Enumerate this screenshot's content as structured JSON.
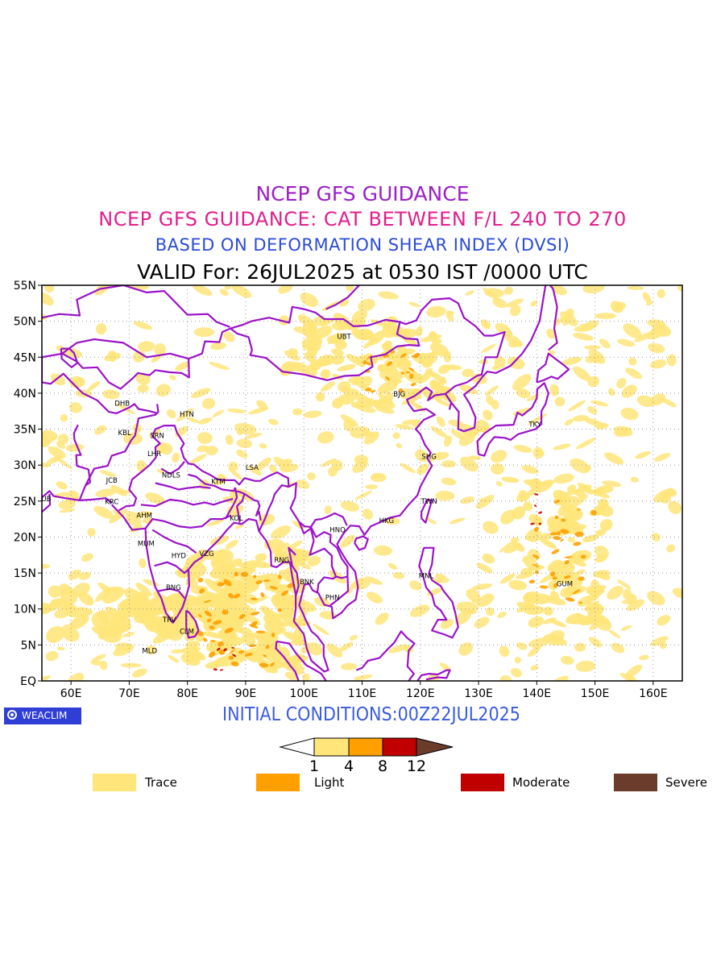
{
  "titles": {
    "line1": "NCEP GFS GUIDANCE",
    "line2": "NCEP GFS GUIDANCE: CAT BETWEEN F/L 240 TO 270",
    "line3": "BASED ON DEFORMATION SHEAR INDEX (DVSI)",
    "line4": "VALID For: 26JUL2025 at 0530 IST /0000 UTC"
  },
  "colors": {
    "line1": "#9b20c8",
    "line2": "#e0208c",
    "line3": "#2a4bd8",
    "border": "#9b12c9",
    "trace": "#ffe57a",
    "light": "#ffa000",
    "moderate": "#c00000",
    "severe": "#6b3b2b",
    "init": "#3a5be0"
  },
  "map": {
    "lon_range": [
      55,
      165
    ],
    "lat_range": [
      0,
      55
    ],
    "lat_ticks": [
      {
        "lat": 55,
        "label": "55N"
      },
      {
        "lat": 50,
        "label": "50N"
      },
      {
        "lat": 45,
        "label": "45N"
      },
      {
        "lat": 40,
        "label": "40N"
      },
      {
        "lat": 35,
        "label": "35N"
      },
      {
        "lat": 30,
        "label": "30N"
      },
      {
        "lat": 25,
        "label": "25N"
      },
      {
        "lat": 20,
        "label": "20N"
      },
      {
        "lat": 15,
        "label": "15N"
      },
      {
        "lat": 10,
        "label": "10N"
      },
      {
        "lat": 5,
        "label": "5N"
      },
      {
        "lat": 0,
        "label": "EQ"
      }
    ],
    "lon_ticks": [
      {
        "lon": 60,
        "label": "60E"
      },
      {
        "lon": 70,
        "label": "70E"
      },
      {
        "lon": 80,
        "label": "80E"
      },
      {
        "lon": 90,
        "label": "90E"
      },
      {
        "lon": 100,
        "label": "100E"
      },
      {
        "lon": 110,
        "label": "110E"
      },
      {
        "lon": 120,
        "label": "120E"
      },
      {
        "lon": 130,
        "label": "130E"
      },
      {
        "lon": 140,
        "label": "140E"
      },
      {
        "lon": 150,
        "label": "150E"
      },
      {
        "lon": 160,
        "label": "160E"
      }
    ],
    "stations": [
      {
        "code": "UBT",
        "lon": 106.9,
        "lat": 47.9
      },
      {
        "code": "BJG",
        "lon": 116.4,
        "lat": 39.9
      },
      {
        "code": "TKY",
        "lon": 139.7,
        "lat": 35.7
      },
      {
        "code": "SHG",
        "lon": 121.5,
        "lat": 31.2
      },
      {
        "code": "TWN",
        "lon": 121.5,
        "lat": 25.0
      },
      {
        "code": "HKG",
        "lon": 114.2,
        "lat": 22.3
      },
      {
        "code": "HNO",
        "lon": 105.8,
        "lat": 21.0
      },
      {
        "code": "MNL",
        "lon": 121.0,
        "lat": 14.6
      },
      {
        "code": "GUM",
        "lon": 144.8,
        "lat": 13.5
      },
      {
        "code": "BNK",
        "lon": 100.5,
        "lat": 13.8
      },
      {
        "code": "PHN",
        "lon": 104.9,
        "lat": 11.6
      },
      {
        "code": "RNG",
        "lon": 96.2,
        "lat": 16.8
      },
      {
        "code": "KOL",
        "lon": 88.4,
        "lat": 22.6
      },
      {
        "code": "LSA",
        "lon": 91.1,
        "lat": 29.7
      },
      {
        "code": "KTM",
        "lon": 85.3,
        "lat": 27.7
      },
      {
        "code": "NDLS",
        "lon": 77.2,
        "lat": 28.6
      },
      {
        "code": "HTN",
        "lon": 79.9,
        "lat": 37.1
      },
      {
        "code": "SRN",
        "lon": 74.8,
        "lat": 34.1
      },
      {
        "code": "LHR",
        "lon": 74.3,
        "lat": 31.6
      },
      {
        "code": "KBL",
        "lon": 69.2,
        "lat": 34.5
      },
      {
        "code": "DHB",
        "lon": 68.8,
        "lat": 38.6
      },
      {
        "code": "JCB",
        "lon": 67.0,
        "lat": 27.9
      },
      {
        "code": "KRC",
        "lon": 67.0,
        "lat": 24.9
      },
      {
        "code": "DUB",
        "lon": 55.3,
        "lat": 25.3
      },
      {
        "code": "AHM",
        "lon": 72.6,
        "lat": 23.0
      },
      {
        "code": "MUM",
        "lon": 72.9,
        "lat": 19.1
      },
      {
        "code": "HYD",
        "lon": 78.5,
        "lat": 17.4
      },
      {
        "code": "VZG",
        "lon": 83.3,
        "lat": 17.7
      },
      {
        "code": "BNG",
        "lon": 77.6,
        "lat": 13.0
      },
      {
        "code": "TRV",
        "lon": 76.9,
        "lat": 8.5
      },
      {
        "code": "CLM",
        "lon": 79.9,
        "lat": 6.9
      },
      {
        "code": "MLD",
        "lon": 73.5,
        "lat": 4.2
      }
    ]
  },
  "init_label": "INITIAL CONDITIONS:00Z22JUL2025",
  "logo": {
    "text": "WEACLIM",
    "icon": "weaclim-logo-icon"
  },
  "colorbar": {
    "ticks": [
      "1",
      "4",
      "8",
      "12"
    ]
  },
  "categories": [
    {
      "label": "Trace",
      "color": "#ffe57a"
    },
    {
      "label": "Light",
      "color": "#ffa000"
    },
    {
      "label": "Moderate",
      "color": "#c00000"
    },
    {
      "label": "Severe",
      "color": "#6b3b2b"
    }
  ]
}
